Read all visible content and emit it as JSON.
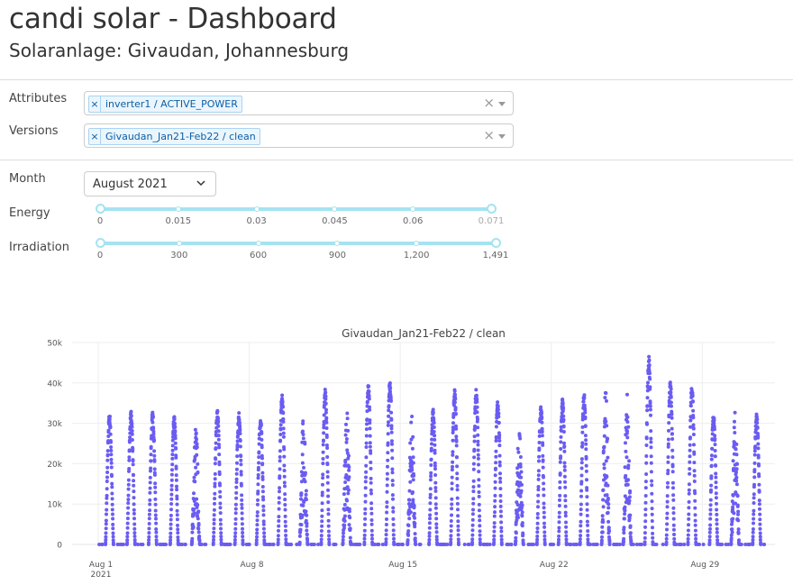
{
  "header": {
    "title": "candi solar - Dashboard",
    "subtitle": "Solaranlage: Givaudan, Johannesburg"
  },
  "filters": {
    "attributes_label": "Attributes",
    "attributes_value": "inverter1 / ACTIVE_POWER",
    "versions_label": "Versions",
    "versions_value": "Givaudan_Jan21-Feb22 / clean",
    "tag_remove": "×",
    "clear": "×"
  },
  "controls": {
    "month_label": "Month",
    "month_value": "August 2021",
    "energy_label": "Energy",
    "energy_marks": [
      "0",
      "0.015",
      "0.03",
      "0.045",
      "0.06",
      "0.071"
    ],
    "energy_range": [
      0,
      0.071
    ],
    "irradiation_label": "Irradiation",
    "irradiation_marks": [
      "0",
      "300",
      "600",
      "900",
      "1,200",
      "1,491"
    ],
    "irradiation_range": [
      0,
      1491
    ]
  },
  "colors": {
    "marker": "#6a5cf2",
    "slider": "#a5e3f1"
  },
  "chart_data": {
    "type": "scatter",
    "title": "Givaudan_Jan21-Feb22 / clean",
    "xlabel": "",
    "ylabel": "",
    "x_ticks": [
      "Aug 1",
      "Aug 8",
      "Aug 15",
      "Aug 22",
      "Aug 29"
    ],
    "x_tick_sub": "2021",
    "y_ticks": [
      "0",
      "10k",
      "20k",
      "30k",
      "40k",
      "50k"
    ],
    "ylim": [
      0,
      50000
    ],
    "xlim_days": [
      "2021-08-01 00:00",
      "2021-09-02 00:00"
    ],
    "grid": true,
    "series": [
      {
        "name": "",
        "daily_peak_w": [
          32500,
          33000,
          32800,
          31800,
          30500,
          33500,
          33000,
          31500,
          37500,
          34000,
          38500,
          35000,
          40000,
          41200,
          33000,
          33500,
          38500,
          38500,
          36000,
          31500,
          34500,
          36000,
          38000,
          40500,
          37500,
          47000,
          40800,
          40000
        ]
      }
    ]
  }
}
